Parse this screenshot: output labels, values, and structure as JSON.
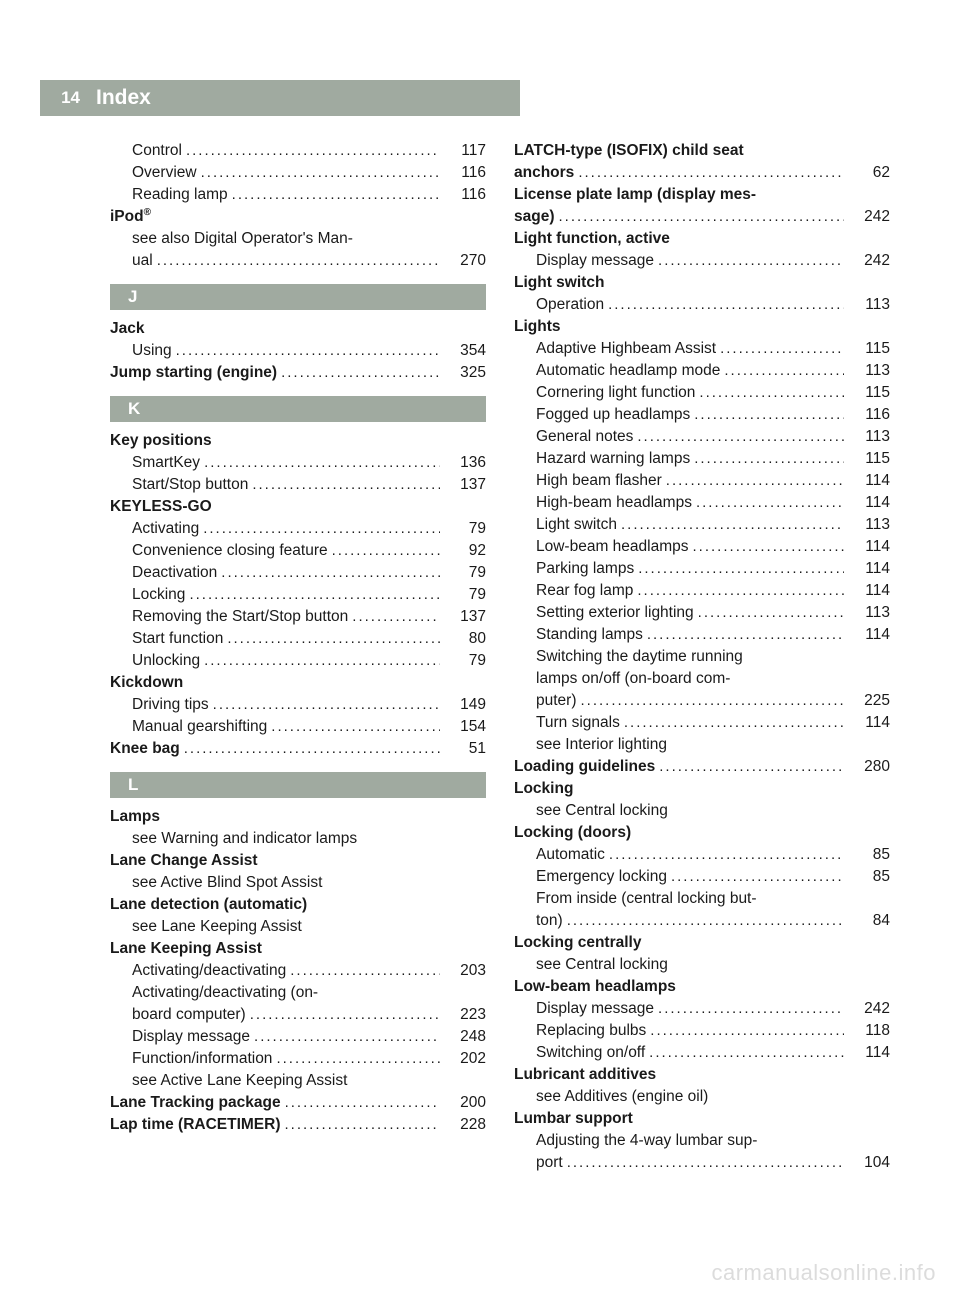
{
  "page_number": "14",
  "page_title": "Index",
  "watermark": "carmanualsonline.info",
  "colors": {
    "header_bg": "#a0aaa0",
    "header_text": "#ffffff",
    "body_text": "#1a1a1a",
    "watermark": "#dcdcdc"
  },
  "left_column": [
    {
      "kind": "entry",
      "indent": true,
      "label": "Control",
      "page": "117"
    },
    {
      "kind": "entry",
      "indent": true,
      "label": "Overview",
      "page": "116"
    },
    {
      "kind": "entry",
      "indent": true,
      "label": "Reading lamp",
      "page": "116"
    },
    {
      "kind": "header",
      "bold": true,
      "label": "iPod®"
    },
    {
      "kind": "noref",
      "label": "see also Digital Operator's Man-"
    },
    {
      "kind": "entry",
      "indent": true,
      "label": "ual",
      "page": "270"
    },
    {
      "kind": "letter",
      "label": "J"
    },
    {
      "kind": "header",
      "bold": true,
      "label": "Jack"
    },
    {
      "kind": "entry",
      "indent": true,
      "label": "Using",
      "page": "354"
    },
    {
      "kind": "entry",
      "bold": true,
      "label": "Jump starting (engine)",
      "page": "325"
    },
    {
      "kind": "letter",
      "label": "K"
    },
    {
      "kind": "header",
      "bold": true,
      "label": "Key positions"
    },
    {
      "kind": "entry",
      "indent": true,
      "label": "SmartKey",
      "page": "136"
    },
    {
      "kind": "entry",
      "indent": true,
      "label": "Start/Stop button",
      "page": "137"
    },
    {
      "kind": "header",
      "bold": true,
      "label": "KEYLESS-GO"
    },
    {
      "kind": "entry",
      "indent": true,
      "label": "Activating",
      "page": "79"
    },
    {
      "kind": "entry",
      "indent": true,
      "label": "Convenience closing feature",
      "page": "92"
    },
    {
      "kind": "entry",
      "indent": true,
      "label": "Deactivation",
      "page": "79"
    },
    {
      "kind": "entry",
      "indent": true,
      "label": "Locking",
      "page": "79"
    },
    {
      "kind": "entry",
      "indent": true,
      "label": "Removing the Start/Stop button",
      "page": "137"
    },
    {
      "kind": "entry",
      "indent": true,
      "label": "Start function",
      "page": "80"
    },
    {
      "kind": "entry",
      "indent": true,
      "label": "Unlocking",
      "page": "79"
    },
    {
      "kind": "header",
      "bold": true,
      "label": "Kickdown"
    },
    {
      "kind": "entry",
      "indent": true,
      "label": "Driving tips",
      "page": "149"
    },
    {
      "kind": "entry",
      "indent": true,
      "label": "Manual gearshifting",
      "page": "154"
    },
    {
      "kind": "entry",
      "bold": true,
      "label": "Knee bag",
      "page": "51"
    },
    {
      "kind": "letter",
      "label": "L"
    },
    {
      "kind": "header",
      "bold": true,
      "label": "Lamps"
    },
    {
      "kind": "noref",
      "label": "see Warning and indicator lamps"
    },
    {
      "kind": "header",
      "bold": true,
      "label": "Lane Change Assist"
    },
    {
      "kind": "noref",
      "label": "see Active Blind Spot Assist"
    },
    {
      "kind": "header",
      "bold": true,
      "label": "Lane detection (automatic)"
    },
    {
      "kind": "noref",
      "label": "see Lane Keeping Assist"
    },
    {
      "kind": "header",
      "bold": true,
      "label": "Lane Keeping Assist"
    },
    {
      "kind": "entry",
      "indent": true,
      "label": "Activating/deactivating",
      "page": "203"
    },
    {
      "kind": "noref",
      "label": "Activating/deactivating (on-"
    },
    {
      "kind": "entry",
      "indent": true,
      "label": "board computer)",
      "page": "223"
    },
    {
      "kind": "entry",
      "indent": true,
      "label": "Display message",
      "page": "248"
    },
    {
      "kind": "entry",
      "indent": true,
      "label": "Function/information",
      "page": "202"
    },
    {
      "kind": "noref",
      "label": "see Active Lane Keeping Assist"
    },
    {
      "kind": "entry",
      "bold": true,
      "label": "Lane Tracking package",
      "page": "200"
    },
    {
      "kind": "entry",
      "bold": true,
      "label": "Lap time (RACETIMER)",
      "page": "228"
    }
  ],
  "right_column": [
    {
      "kind": "header",
      "bold": true,
      "label": "LATCH-type (ISOFIX) child seat"
    },
    {
      "kind": "entry",
      "bold": true,
      "label": "anchors",
      "page": "62"
    },
    {
      "kind": "header",
      "bold": true,
      "label": "License plate lamp (display mes-"
    },
    {
      "kind": "entry",
      "bold": true,
      "label": "sage)",
      "page": "242"
    },
    {
      "kind": "header",
      "bold": true,
      "label": "Light function, active"
    },
    {
      "kind": "entry",
      "indent": true,
      "label": "Display message",
      "page": "242"
    },
    {
      "kind": "header",
      "bold": true,
      "label": "Light switch"
    },
    {
      "kind": "entry",
      "indent": true,
      "label": "Operation",
      "page": "113"
    },
    {
      "kind": "header",
      "bold": true,
      "label": "Lights"
    },
    {
      "kind": "entry",
      "indent": true,
      "label": "Adaptive Highbeam Assist",
      "page": "115"
    },
    {
      "kind": "entry",
      "indent": true,
      "label": "Automatic headlamp mode",
      "page": "113"
    },
    {
      "kind": "entry",
      "indent": true,
      "label": "Cornering light function",
      "page": "115"
    },
    {
      "kind": "entry",
      "indent": true,
      "label": "Fogged up headlamps",
      "page": "116"
    },
    {
      "kind": "entry",
      "indent": true,
      "label": "General notes",
      "page": "113"
    },
    {
      "kind": "entry",
      "indent": true,
      "label": "Hazard warning lamps",
      "page": "115"
    },
    {
      "kind": "entry",
      "indent": true,
      "label": "High beam flasher",
      "page": "114"
    },
    {
      "kind": "entry",
      "indent": true,
      "label": "High-beam headlamps",
      "page": "114"
    },
    {
      "kind": "entry",
      "indent": true,
      "label": "Light switch",
      "page": "113"
    },
    {
      "kind": "entry",
      "indent": true,
      "label": "Low-beam headlamps",
      "page": "114"
    },
    {
      "kind": "entry",
      "indent": true,
      "label": "Parking lamps",
      "page": "114"
    },
    {
      "kind": "entry",
      "indent": true,
      "label": "Rear fog lamp",
      "page": "114"
    },
    {
      "kind": "entry",
      "indent": true,
      "label": "Setting exterior lighting",
      "page": "113"
    },
    {
      "kind": "entry",
      "indent": true,
      "label": "Standing lamps",
      "page": "114"
    },
    {
      "kind": "noref",
      "label": "Switching the daytime running"
    },
    {
      "kind": "noref",
      "label": "lamps on/off (on-board com-"
    },
    {
      "kind": "entry",
      "indent": true,
      "label": "puter)",
      "page": "225"
    },
    {
      "kind": "entry",
      "indent": true,
      "label": "Turn signals",
      "page": "114"
    },
    {
      "kind": "noref",
      "label": "see Interior lighting"
    },
    {
      "kind": "entry",
      "bold": true,
      "label": "Loading guidelines",
      "page": "280"
    },
    {
      "kind": "header",
      "bold": true,
      "label": "Locking"
    },
    {
      "kind": "noref",
      "label": "see Central locking"
    },
    {
      "kind": "header",
      "bold": true,
      "label": "Locking (doors)"
    },
    {
      "kind": "entry",
      "indent": true,
      "label": "Automatic",
      "page": "85"
    },
    {
      "kind": "entry",
      "indent": true,
      "label": "Emergency locking",
      "page": "85"
    },
    {
      "kind": "noref",
      "label": "From inside (central locking but-"
    },
    {
      "kind": "entry",
      "indent": true,
      "label": "ton)",
      "page": "84"
    },
    {
      "kind": "header",
      "bold": true,
      "label": "Locking centrally"
    },
    {
      "kind": "noref",
      "label": "see Central locking"
    },
    {
      "kind": "header",
      "bold": true,
      "label": "Low-beam headlamps"
    },
    {
      "kind": "entry",
      "indent": true,
      "label": "Display message",
      "page": "242"
    },
    {
      "kind": "entry",
      "indent": true,
      "label": "Replacing bulbs",
      "page": "118"
    },
    {
      "kind": "entry",
      "indent": true,
      "label": "Switching on/off",
      "page": "114"
    },
    {
      "kind": "header",
      "bold": true,
      "label": "Lubricant additives"
    },
    {
      "kind": "noref",
      "label": "see Additives (engine oil)"
    },
    {
      "kind": "header",
      "bold": true,
      "label": "Lumbar support"
    },
    {
      "kind": "noref",
      "label": "Adjusting the 4-way lumbar sup-"
    },
    {
      "kind": "entry",
      "indent": true,
      "label": "port",
      "page": "104"
    }
  ]
}
